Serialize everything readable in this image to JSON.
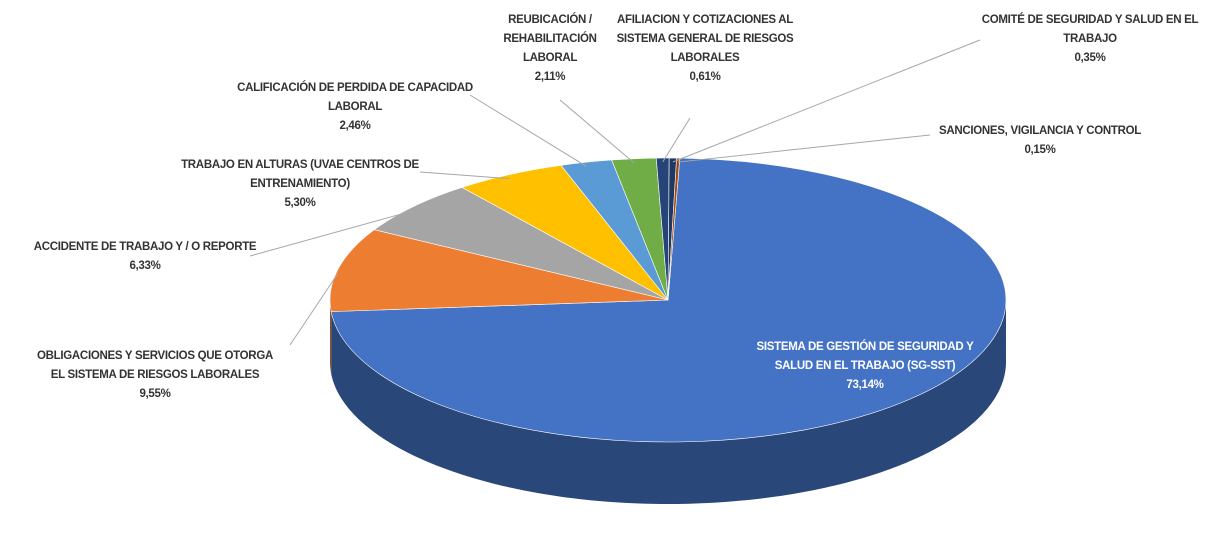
{
  "chart_data": {
    "type": "pie",
    "categories": [
      "SISTEMA DE GESTIÓN DE SEGURIDAD Y SALUD EN EL TRABAJO (SG-SST)",
      "OBLIGACIONES Y SERVICIOS QUE OTORGA EL SISTEMA DE RIESGOS LABORALES",
      "ACCIDENTE DE TRABAJO Y / O REPORTE",
      "TRABAJO EN ALTURAS (UVAE CENTROS DE ENTRENAMIENTO)",
      "CALIFICACIÓN DE PERDIDA DE CAPACIDAD LABORAL",
      "REUBICACIÓN / REHABILITACIÓN LABORAL",
      "AFILIACION Y COTIZACIONES AL SISTEMA GENERAL DE RIESGOS LABORALES",
      "COMITÉ DE SEGURIDAD Y SALUD EN EL TRABAJO",
      "SANCIONES, VIGILANCIA Y CONTROL"
    ],
    "values": [
      73.14,
      9.55,
      6.33,
      5.3,
      2.46,
      2.11,
      0.61,
      0.35,
      0.15
    ],
    "value_labels": [
      "73,14%",
      "9,55%",
      "6,33%",
      "5,30%",
      "2,46%",
      "2,11%",
      "0,61%",
      "0,35%",
      "0,15%"
    ],
    "colors": [
      "#4472c4",
      "#ed7d31",
      "#a5a5a5",
      "#ffc000",
      "#5b9bd5",
      "#70ad47",
      "#264478",
      "#1f3864",
      "#9e480e"
    ]
  }
}
